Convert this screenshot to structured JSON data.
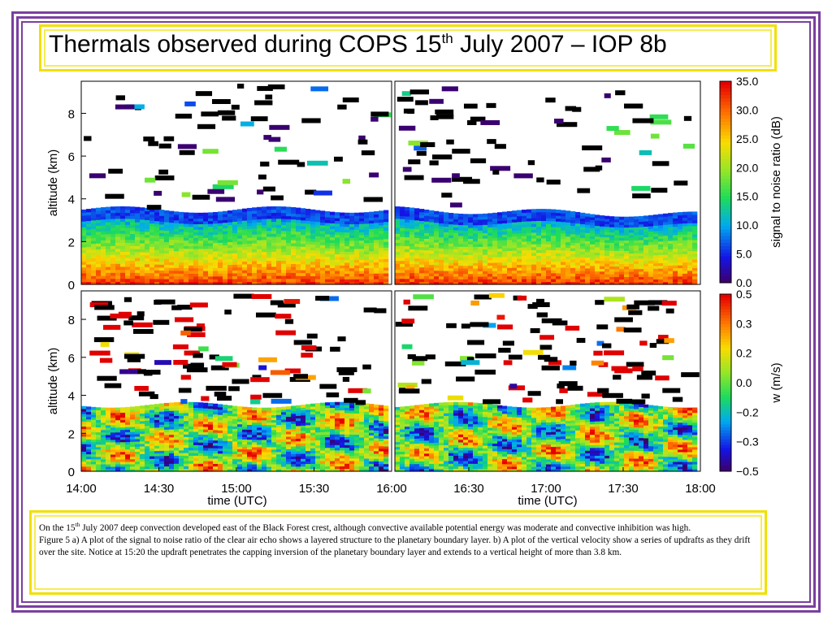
{
  "title": {
    "pre": "Thermals observed during COPS 15",
    "sup": "th",
    "post": " July 2007 – IOP 8b"
  },
  "caption": {
    "line1_pre": "On the 15",
    "line1_sup": "th",
    "line1_post": " July 2007 deep convection developed east of the Black Forest crest, although convective available potential energy was moderate and convective inhibition was high.",
    "line2": "Figure 5 a) A plot of the signal to noise ratio of the clear air echo shows a layered structure to the planetary boundary layer. b) A plot of the vertical velocity show a series of updrafts as they drift over the site. Notice at 15:20 the updraft penetrates the capping inversion of the planetary boundary layer and extends to a vertical height of more than 3.8 km."
  },
  "colors": {
    "frame": "#7b3fa0",
    "box_border": "#f0e000"
  },
  "chart_data": [
    {
      "type": "heatmap",
      "panel": "a",
      "ylabel": "altitude (km)",
      "yticks": [
        "0",
        "2",
        "4",
        "6",
        "8"
      ],
      "ylim": [
        0,
        9.5
      ],
      "colorbar_label": "signal to noise ratio (dB)",
      "colorbar_ticks": [
        "0.0",
        "5.0",
        "10.0",
        "15.0",
        "20.0",
        "25.0",
        "30.0",
        "35.0"
      ],
      "clim": [
        0,
        35
      ],
      "boundary_layer_top_km": 3.5,
      "layers": [
        {
          "altitude_km": 0.5,
          "snr_db": 32
        },
        {
          "altitude_km": 1.5,
          "snr_db": 26
        },
        {
          "altitude_km": 2.3,
          "snr_db": 20
        },
        {
          "altitude_km": 3.0,
          "snr_db": 12
        },
        {
          "altitude_km": 3.4,
          "snr_db": 7
        }
      ]
    },
    {
      "type": "heatmap",
      "panel": "b",
      "ylabel": "altitude (km)",
      "yticks": [
        "0",
        "2",
        "4",
        "6",
        "8"
      ],
      "ylim": [
        0,
        9.5
      ],
      "xlabel": "time (UTC)",
      "xticks_left": [
        "14:00",
        "14:30",
        "15:00",
        "15:30",
        "16:00"
      ],
      "xticks_right": [
        "16:30",
        "17:00",
        "17:30",
        "18:00"
      ],
      "xlim": [
        "14:00",
        "18:00"
      ],
      "colorbar_label": "w (m/s)",
      "colorbar_ticks": [
        "−0.5",
        "−0.3",
        "−0.2",
        "0.0",
        "0.2",
        "0.3",
        "0.5"
      ],
      "clim": [
        -0.5,
        0.5
      ],
      "updraft_penetration": {
        "time": "15:20",
        "height_km": 3.8
      }
    }
  ]
}
